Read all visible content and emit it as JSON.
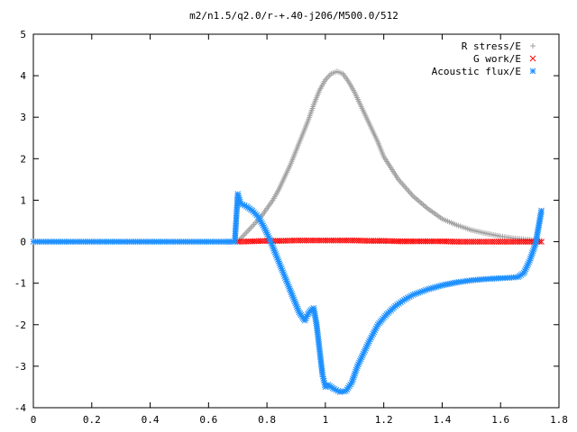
{
  "chart_data": {
    "type": "scatter",
    "title": "m2/n1.5/q2.0/r-+.40-j206/M500.0/512",
    "xlabel": "",
    "ylabel": "",
    "xlim": [
      0,
      1.8
    ],
    "ylim": [
      -4,
      5
    ],
    "x_ticks": [
      "0",
      "0.2",
      "0.4",
      "0.6",
      "0.8",
      "1",
      "1.2",
      "1.4",
      "1.6",
      "1.8"
    ],
    "y_ticks": [
      "-4",
      "-3",
      "-2",
      "-1",
      "0",
      "1",
      "2",
      "3",
      "4",
      "5"
    ],
    "x_tick_values": [
      0,
      0.2,
      0.4,
      0.6,
      0.8,
      1.0,
      1.2,
      1.4,
      1.6,
      1.8
    ],
    "y_tick_values": [
      -4,
      -3,
      -2,
      -1,
      0,
      1,
      2,
      3,
      4,
      5
    ],
    "grid": false,
    "legend_position": "top-right",
    "series": [
      {
        "name": "R stress/E",
        "marker": "+",
        "color": "#a0a0a0",
        "x": [
          0.7,
          0.72,
          0.74,
          0.76,
          0.78,
          0.8,
          0.82,
          0.84,
          0.86,
          0.88,
          0.9,
          0.92,
          0.94,
          0.96,
          0.98,
          1.0,
          1.02,
          1.04,
          1.06,
          1.08,
          1.1,
          1.12,
          1.14,
          1.16,
          1.18,
          1.2,
          1.25,
          1.3,
          1.35,
          1.4,
          1.45,
          1.5,
          1.55,
          1.6,
          1.65,
          1.7,
          1.72,
          1.74
        ],
        "y": [
          0.0,
          0.15,
          0.3,
          0.45,
          0.6,
          0.8,
          1.0,
          1.25,
          1.55,
          1.85,
          2.2,
          2.55,
          2.9,
          3.3,
          3.65,
          3.9,
          4.05,
          4.1,
          4.05,
          3.85,
          3.6,
          3.3,
          3.0,
          2.7,
          2.4,
          2.05,
          1.5,
          1.1,
          0.8,
          0.55,
          0.4,
          0.28,
          0.2,
          0.13,
          0.08,
          0.05,
          0.03,
          0.02
        ]
      },
      {
        "name": "G work/E",
        "marker": "x",
        "color": "#ff0000",
        "x": [
          0.7,
          0.75,
          0.8,
          0.85,
          0.9,
          0.95,
          1.0,
          1.05,
          1.1,
          1.15,
          1.2,
          1.25,
          1.3,
          1.35,
          1.4,
          1.45,
          1.5,
          1.55,
          1.6,
          1.65,
          1.7,
          1.72,
          1.74
        ],
        "y": [
          0.0,
          0.01,
          0.02,
          0.02,
          0.03,
          0.03,
          0.03,
          0.03,
          0.03,
          0.02,
          0.02,
          0.01,
          0.01,
          0.01,
          0.01,
          0.0,
          0.0,
          0.0,
          0.0,
          0.0,
          0.0,
          0.0,
          0.0
        ]
      },
      {
        "name": "Acoustic flux/E",
        "marker": "*",
        "color": "#1e90ff",
        "x": [
          0.0,
          0.05,
          0.1,
          0.15,
          0.2,
          0.25,
          0.3,
          0.35,
          0.4,
          0.45,
          0.5,
          0.55,
          0.6,
          0.65,
          0.69,
          0.7,
          0.71,
          0.73,
          0.75,
          0.77,
          0.79,
          0.81,
          0.83,
          0.85,
          0.87,
          0.89,
          0.91,
          0.92,
          0.93,
          0.94,
          0.95,
          0.96,
          0.97,
          0.98,
          0.99,
          1.0,
          1.01,
          1.03,
          1.05,
          1.07,
          1.09,
          1.11,
          1.13,
          1.15,
          1.18,
          1.21,
          1.24,
          1.27,
          1.3,
          1.35,
          1.4,
          1.45,
          1.5,
          1.55,
          1.6,
          1.63,
          1.66,
          1.68,
          1.7,
          1.72,
          1.73,
          1.74
        ],
        "y": [
          0.0,
          0.0,
          0.0,
          0.0,
          0.0,
          0.0,
          0.0,
          0.0,
          0.0,
          0.0,
          0.0,
          0.0,
          0.0,
          0.0,
          0.0,
          1.15,
          0.92,
          0.85,
          0.75,
          0.6,
          0.35,
          0.05,
          -0.3,
          -0.65,
          -1.0,
          -1.35,
          -1.7,
          -1.8,
          -1.9,
          -1.75,
          -1.65,
          -1.6,
          -2.0,
          -2.6,
          -3.2,
          -3.5,
          -3.45,
          -3.55,
          -3.62,
          -3.6,
          -3.4,
          -3.0,
          -2.7,
          -2.4,
          -2.0,
          -1.75,
          -1.55,
          -1.4,
          -1.28,
          -1.15,
          -1.05,
          -0.98,
          -0.93,
          -0.9,
          -0.88,
          -0.87,
          -0.85,
          -0.75,
          -0.45,
          -0.05,
          0.35,
          0.75
        ]
      }
    ]
  }
}
